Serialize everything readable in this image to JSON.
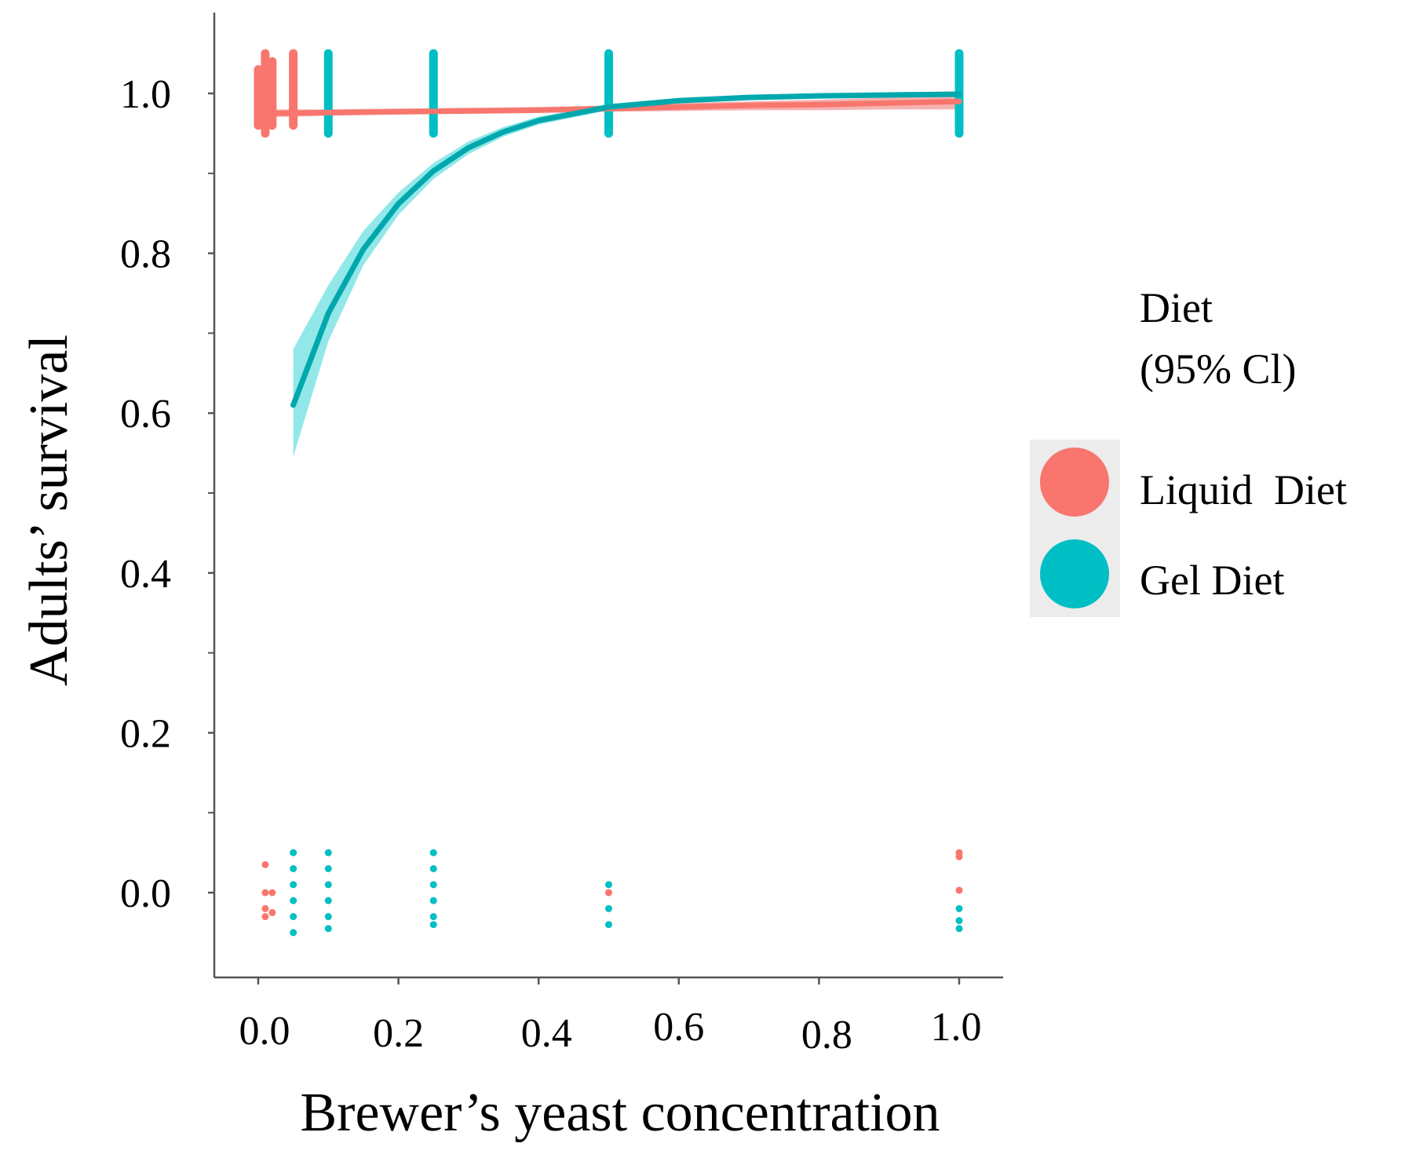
{
  "chart_data": {
    "type": "scatter",
    "title": "",
    "xlabel": "Brewer’s yeast concentration",
    "ylabel": "Adults’ survival",
    "xlim": [
      -0.15,
      1.13
    ],
    "ylim": [
      -0.1,
      1.1
    ],
    "x_ticks": [
      {
        "value": 0.0,
        "label": "0.0"
      },
      {
        "value": 0.2,
        "label": "0.2"
      },
      {
        "value": 0.4,
        "label": "0.4"
      },
      {
        "value": 0.6,
        "label": "0.6"
      },
      {
        "value": 0.8,
        "label": "0.8"
      },
      {
        "value": 1.0,
        "label": "1.0"
      }
    ],
    "y_ticks": [
      {
        "value": 0.0,
        "label": "0.0"
      },
      {
        "value": 0.2,
        "label": "0.2"
      },
      {
        "value": 0.4,
        "label": "0.4"
      },
      {
        "value": 0.6,
        "label": "0.6"
      },
      {
        "value": 0.8,
        "label": "0.8"
      },
      {
        "value": 1.0,
        "label": "1.0"
      }
    ],
    "y_minor_ticks": [
      0.1,
      0.3,
      0.5,
      0.7,
      0.9
    ],
    "grid": false,
    "legend": {
      "title_lines": [
        "Diet",
        "(95% Cl)"
      ],
      "placement": "right",
      "entries": [
        "Liquid  Diet",
        "Gel Diet"
      ]
    },
    "series": [
      {
        "name": "Liquid  Diet",
        "color": "#f8766d",
        "ci_color": "#f5a3a3",
        "fit_x": [
          0.0,
          0.1,
          0.2,
          0.3,
          0.4,
          0.5,
          0.6,
          0.7,
          0.8,
          0.9,
          1.0
        ],
        "fit_y": [
          0.975,
          0.976,
          0.977,
          0.978,
          0.979,
          0.981,
          0.983,
          0.985,
          0.986,
          0.988,
          0.99
        ],
        "ci_lower": [
          0.97,
          0.972,
          0.974,
          0.975,
          0.976,
          0.977,
          0.978,
          0.979,
          0.979,
          0.98,
          0.98
        ],
        "ci_upper": [
          0.98,
          0.98,
          0.981,
          0.982,
          0.983,
          0.985,
          0.988,
          0.99,
          0.992,
          0.995,
          0.997
        ],
        "points": [
          {
            "x": 0.0,
            "y": 0.97
          },
          {
            "x": 0.0,
            "y": 1.0
          },
          {
            "x": 0.0,
            "y": 1.03
          },
          {
            "x": 0.0,
            "y": 0.96
          },
          {
            "x": 0.01,
            "y": 1.05
          },
          {
            "x": 0.01,
            "y": 0.98
          },
          {
            "x": 0.01,
            "y": 1.01
          },
          {
            "x": 0.01,
            "y": 0.95
          },
          {
            "x": 0.02,
            "y": 1.04
          },
          {
            "x": 0.02,
            "y": 0.99
          },
          {
            "x": 0.02,
            "y": 0.96
          },
          {
            "x": 0.02,
            "y": 1.02
          },
          {
            "x": 0.05,
            "y": 1.05
          },
          {
            "x": 0.05,
            "y": 1.0
          },
          {
            "x": 0.05,
            "y": 0.96
          },
          {
            "x": 0.1,
            "y": 1.0
          },
          {
            "x": 0.25,
            "y": 1.0
          },
          {
            "x": 0.5,
            "y": 1.0
          },
          {
            "x": 1.0,
            "y": 1.0
          },
          {
            "x": 0.01,
            "y": 0.035
          },
          {
            "x": 0.01,
            "y": 0.0
          },
          {
            "x": 0.02,
            "y": 0.0
          },
          {
            "x": 0.01,
            "y": -0.02
          },
          {
            "x": 0.02,
            "y": -0.025
          },
          {
            "x": 0.01,
            "y": -0.03
          },
          {
            "x": 0.5,
            "y": 0.0
          },
          {
            "x": 1.0,
            "y": 0.05
          },
          {
            "x": 1.0,
            "y": 0.045
          },
          {
            "x": 1.0,
            "y": 0.003
          }
        ]
      },
      {
        "name": "Gel Diet",
        "color": "#00bfc4",
        "ci_color": "#7fe3e4",
        "fit_x": [
          0.05,
          0.1,
          0.15,
          0.2,
          0.25,
          0.3,
          0.35,
          0.4,
          0.5,
          0.6,
          0.7,
          0.8,
          0.9,
          1.0
        ],
        "fit_y": [
          0.61,
          0.725,
          0.805,
          0.862,
          0.903,
          0.932,
          0.952,
          0.966,
          0.983,
          0.991,
          0.995,
          0.997,
          0.998,
          0.999
        ],
        "ci_lower": [
          0.545,
          0.69,
          0.785,
          0.848,
          0.893,
          0.924,
          0.946,
          0.961,
          0.979,
          0.988,
          0.992,
          0.994,
          0.995,
          0.996
        ],
        "ci_upper": [
          0.68,
          0.76,
          0.828,
          0.876,
          0.913,
          0.94,
          0.958,
          0.971,
          0.987,
          0.994,
          0.997,
          0.999,
          1.0,
          1.0
        ],
        "points": [
          {
            "x": 0.05,
            "y": 1.02
          },
          {
            "x": 0.05,
            "y": 0.99
          },
          {
            "x": 0.1,
            "y": 1.05
          },
          {
            "x": 0.1,
            "y": 1.02
          },
          {
            "x": 0.1,
            "y": 0.99
          },
          {
            "x": 0.1,
            "y": 0.96
          },
          {
            "x": 0.1,
            "y": 0.95
          },
          {
            "x": 0.25,
            "y": 1.05
          },
          {
            "x": 0.25,
            "y": 1.02
          },
          {
            "x": 0.25,
            "y": 0.99
          },
          {
            "x": 0.25,
            "y": 0.96
          },
          {
            "x": 0.25,
            "y": 0.95
          },
          {
            "x": 0.5,
            "y": 1.05
          },
          {
            "x": 0.5,
            "y": 1.02
          },
          {
            "x": 0.5,
            "y": 0.99
          },
          {
            "x": 0.5,
            "y": 0.96
          },
          {
            "x": 0.5,
            "y": 0.95
          },
          {
            "x": 1.0,
            "y": 1.05
          },
          {
            "x": 1.0,
            "y": 1.02
          },
          {
            "x": 1.0,
            "y": 0.99
          },
          {
            "x": 1.0,
            "y": 0.96
          },
          {
            "x": 1.0,
            "y": 0.95
          },
          {
            "x": 0.05,
            "y": 0.05
          },
          {
            "x": 0.05,
            "y": 0.03
          },
          {
            "x": 0.05,
            "y": 0.01
          },
          {
            "x": 0.05,
            "y": -0.01
          },
          {
            "x": 0.05,
            "y": -0.03
          },
          {
            "x": 0.05,
            "y": -0.05
          },
          {
            "x": 0.1,
            "y": 0.05
          },
          {
            "x": 0.1,
            "y": 0.03
          },
          {
            "x": 0.1,
            "y": 0.01
          },
          {
            "x": 0.1,
            "y": -0.01
          },
          {
            "x": 0.1,
            "y": -0.03
          },
          {
            "x": 0.1,
            "y": -0.045
          },
          {
            "x": 0.25,
            "y": 0.05
          },
          {
            "x": 0.25,
            "y": 0.03
          },
          {
            "x": 0.25,
            "y": 0.01
          },
          {
            "x": 0.25,
            "y": -0.01
          },
          {
            "x": 0.25,
            "y": -0.03
          },
          {
            "x": 0.25,
            "y": -0.04
          },
          {
            "x": 0.5,
            "y": 0.01
          },
          {
            "x": 0.5,
            "y": -0.02
          },
          {
            "x": 0.5,
            "y": -0.04
          },
          {
            "x": 1.0,
            "y": -0.02
          },
          {
            "x": 1.0,
            "y": -0.035
          },
          {
            "x": 1.0,
            "y": -0.045
          }
        ]
      }
    ]
  }
}
